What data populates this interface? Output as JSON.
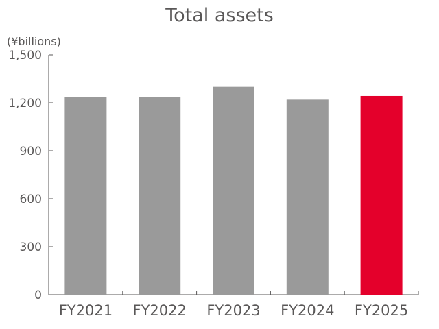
{
  "chart_data": {
    "type": "bar",
    "title": "Total assets",
    "unit_label": "(¥billions)",
    "xlabel": "",
    "ylabel": "",
    "categories": [
      "FY2021",
      "FY2022",
      "FY2023",
      "FY2024",
      "FY2025"
    ],
    "values": [
      1237,
      1235,
      1300,
      1220,
      1243
    ],
    "ylim": [
      0,
      1500
    ],
    "yticks": [
      0,
      300,
      600,
      900,
      1200,
      1500
    ],
    "ytick_labels": [
      "0",
      "300",
      "600",
      "900",
      "1,200",
      "1,500"
    ],
    "grid": false,
    "colors": {
      "default_bar": "#9a9a9a",
      "highlight_bar": "#e4002b",
      "text": "#595757",
      "axis": "#595757"
    },
    "highlight_index": 4
  }
}
